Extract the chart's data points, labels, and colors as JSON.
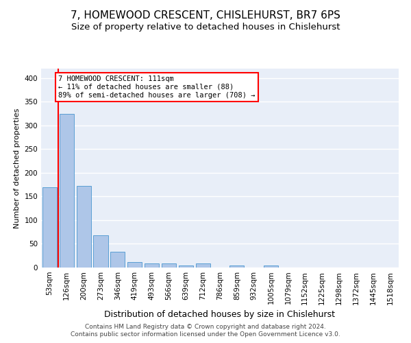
{
  "title": "7, HOMEWOOD CRESCENT, CHISLEHURST, BR7 6PS",
  "subtitle": "Size of property relative to detached houses in Chislehurst",
  "xlabel": "Distribution of detached houses by size in Chislehurst",
  "ylabel": "Number of detached properties",
  "categories": [
    "53sqm",
    "126sqm",
    "200sqm",
    "273sqm",
    "346sqm",
    "419sqm",
    "493sqm",
    "566sqm",
    "639sqm",
    "712sqm",
    "786sqm",
    "859sqm",
    "932sqm",
    "1005sqm",
    "1079sqm",
    "1152sqm",
    "1225sqm",
    "1298sqm",
    "1372sqm",
    "1445sqm",
    "1518sqm"
  ],
  "values": [
    170,
    325,
    172,
    68,
    33,
    11,
    9,
    8,
    5,
    9,
    0,
    4,
    0,
    5,
    0,
    0,
    0,
    0,
    0,
    0,
    0
  ],
  "bar_color": "#aec6e8",
  "bar_edgecolor": "#5a9fd4",
  "vline_x": 1,
  "vline_color": "red",
  "annotation_text": "7 HOMEWOOD CRESCENT: 111sqm\n← 11% of detached houses are smaller (88)\n89% of semi-detached houses are larger (708) →",
  "annotation_box_color": "white",
  "annotation_box_edgecolor": "red",
  "ylim": [
    0,
    420
  ],
  "yticks": [
    0,
    50,
    100,
    150,
    200,
    250,
    300,
    350,
    400
  ],
  "background_color": "#e8eef8",
  "grid_color": "white",
  "footer1": "Contains HM Land Registry data © Crown copyright and database right 2024.",
  "footer2": "Contains public sector information licensed under the Open Government Licence v3.0.",
  "title_fontsize": 11,
  "subtitle_fontsize": 9.5,
  "xlabel_fontsize": 9,
  "ylabel_fontsize": 8,
  "tick_fontsize": 7.5,
  "annotation_fontsize": 7.5,
  "footer_fontsize": 6.5
}
